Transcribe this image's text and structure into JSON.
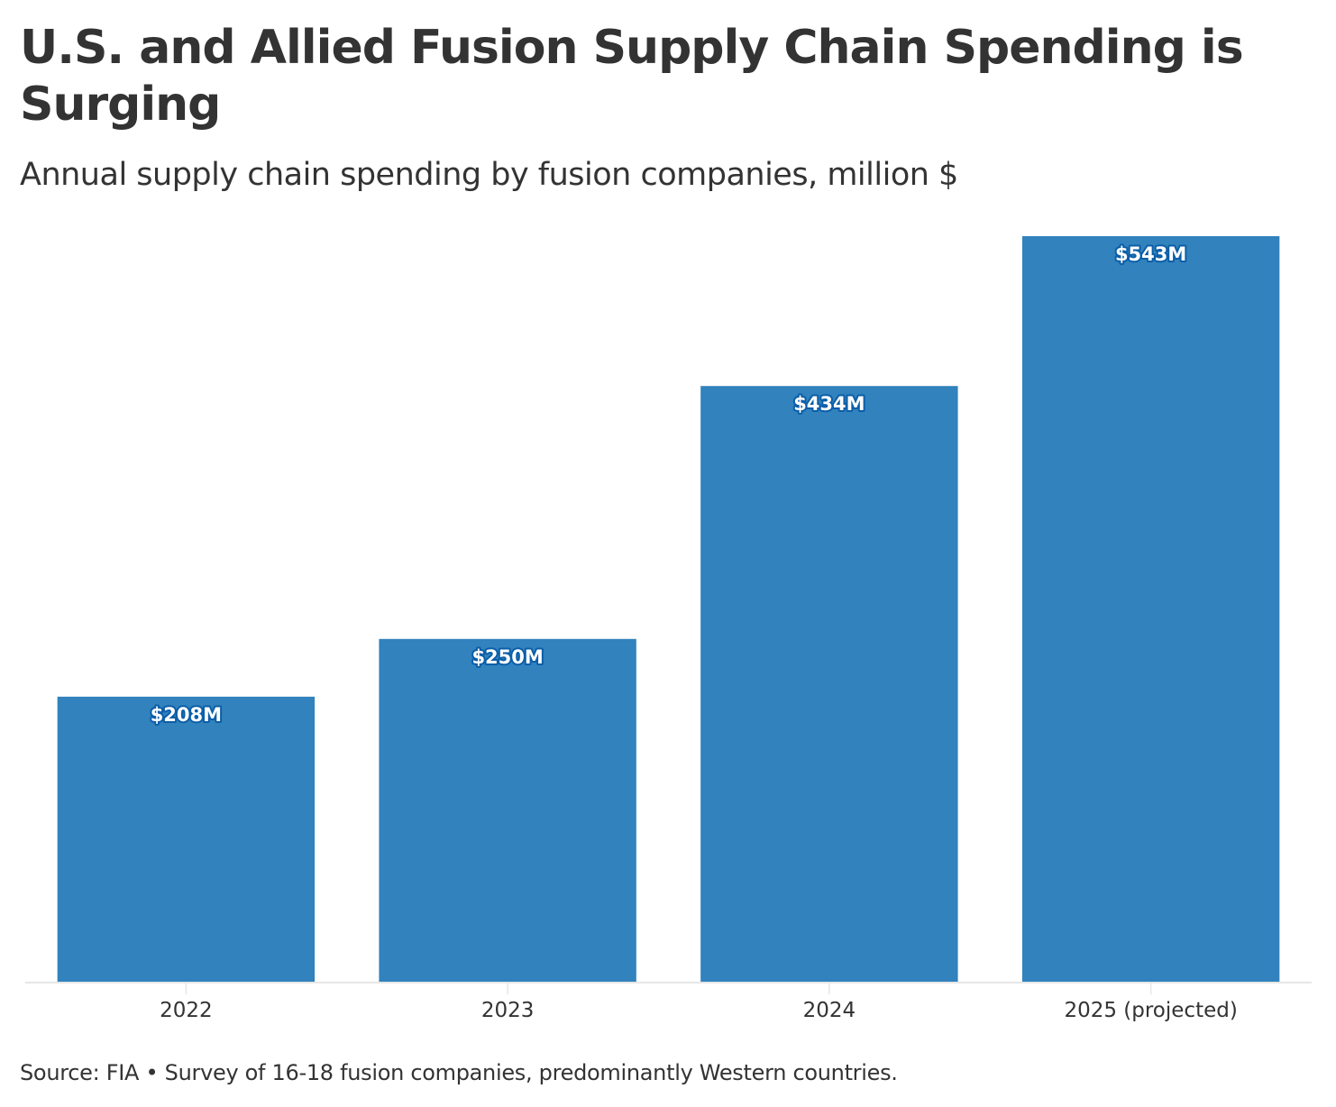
{
  "header": {
    "title": "U.S. and Allied Fusion Supply Chain Spending is Surging",
    "subtitle": "Annual supply chain spending by fusion companies, million $"
  },
  "footer": {
    "source": "Source: FIA • Survey of 16-18 fusion companies, predominantly Western countries."
  },
  "colors": {
    "bar": "#3182bd",
    "label_outline": "#0b5ea8",
    "axis": "#e6e6e6",
    "text": "#333333"
  },
  "chart_data": {
    "type": "bar",
    "title": "U.S. and Allied Fusion Supply Chain Spending is Surging",
    "subtitle": "Annual supply chain spending by fusion companies, million $",
    "xlabel": "",
    "ylabel": "",
    "categories": [
      "2022",
      "2023",
      "2024",
      "2025 (projected)"
    ],
    "values": [
      208,
      250,
      434,
      543
    ],
    "data_labels": [
      "$208M",
      "$250M",
      "$434M",
      "$543M"
    ],
    "ylim": [
      0,
      543
    ],
    "grid": false,
    "legend": "none",
    "y_axis_visible": false
  }
}
